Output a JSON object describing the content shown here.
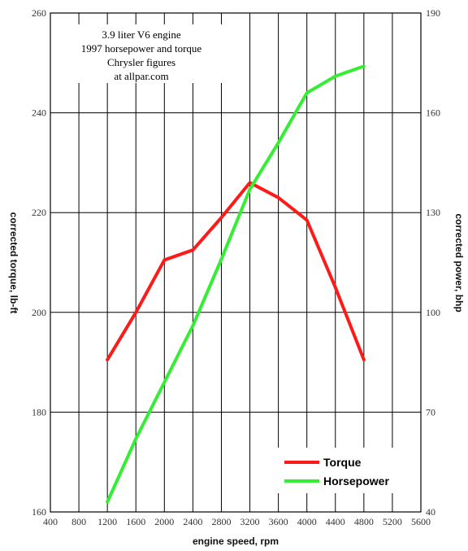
{
  "chart_data": {
    "type": "line",
    "annotation_lines": [
      "3.9 liter V6 engine",
      "1997 horsepower and torque",
      "Chrysler figures",
      "at allpar.com"
    ],
    "xlabel": "engine speed, rpm",
    "ylabel_left": "corrected torque, lb-ft",
    "ylabel_right": "corrected power, bhp",
    "xlim": [
      400,
      5600
    ],
    "x_ticks": [
      400,
      800,
      1200,
      1600,
      2000,
      2400,
      2800,
      3200,
      3600,
      4000,
      4400,
      4800,
      5200,
      5600
    ],
    "ylim_left": [
      160,
      260
    ],
    "y_ticks_left": [
      160,
      180,
      200,
      220,
      240,
      260
    ],
    "ylim_right": [
      40,
      190
    ],
    "y_ticks_right": [
      40,
      70,
      100,
      130,
      160,
      190
    ],
    "grid": true,
    "legend_position": "bottom-right",
    "series": [
      {
        "name": "Torque",
        "axis": "left",
        "color": "#ff1a1a",
        "x": [
          1200,
          1600,
          2000,
          2400,
          2800,
          3200,
          3600,
          4000,
          4400,
          4800
        ],
        "y": [
          190.5,
          200,
          210.5,
          212.5,
          219,
          226,
          223,
          218.5,
          205,
          190.5
        ]
      },
      {
        "name": "Horsepower",
        "axis": "right",
        "color": "#33ee33",
        "x": [
          1200,
          1600,
          2000,
          2400,
          2800,
          3200,
          3600,
          4000,
          4400,
          4800
        ],
        "y": [
          43,
          62,
          79,
          96,
          116,
          137,
          151,
          166,
          171,
          174
        ]
      }
    ]
  }
}
